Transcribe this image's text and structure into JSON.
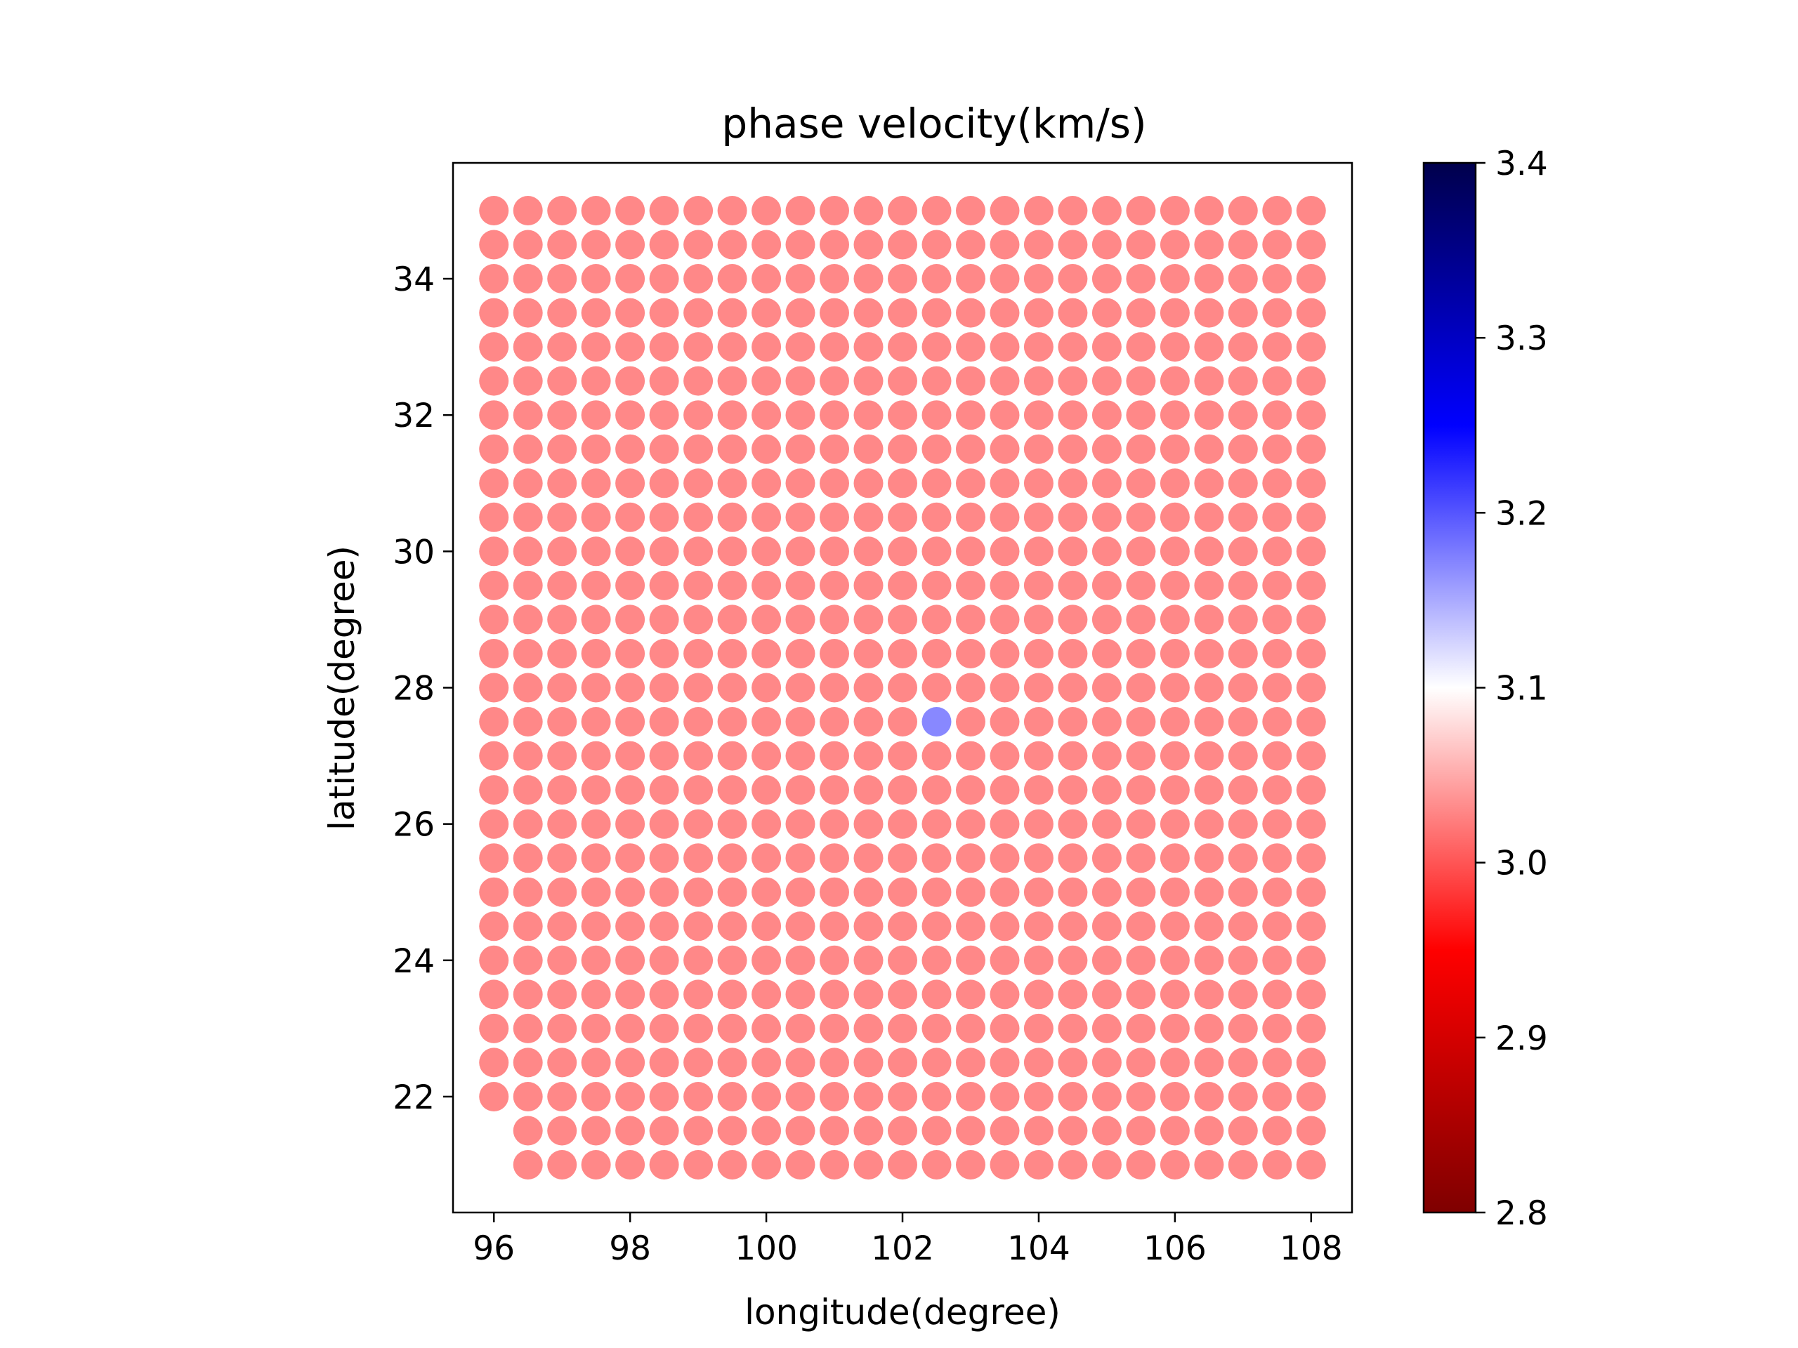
{
  "chart_data": {
    "type": "scatter",
    "title": "phase velocity(km/s)",
    "xlabel": "longitude(degree)",
    "ylabel": "latitude(degree)",
    "xlim": [
      95.4,
      108.6
    ],
    "ylim": [
      20.3,
      35.7
    ],
    "xticks": [
      96,
      98,
      100,
      102,
      104,
      106,
      108
    ],
    "yticks": [
      22,
      24,
      26,
      28,
      30,
      32,
      34
    ],
    "grid": false,
    "grid_points": {
      "lon_start": 96.0,
      "lon_end": 108.0,
      "lon_step": 0.5,
      "lat_start": 21.0,
      "lat_end": 35.0,
      "lat_step": 0.5,
      "excluded_points": [
        [
          96.0,
          21.0
        ],
        [
          96.0,
          21.5
        ]
      ]
    },
    "default_value": 3.0,
    "anomalies": [
      {
        "lon": 102.5,
        "lat": 27.5,
        "value": 3.2
      }
    ],
    "colorbar": {
      "cmap": "seismic_r",
      "vmin": 2.8,
      "vmax": 3.4,
      "ticks": [
        "2.8",
        "2.9",
        "3.0",
        "3.1",
        "3.2",
        "3.3",
        "3.4"
      ],
      "placement": "right"
    },
    "marker_alpha": 0.7
  }
}
